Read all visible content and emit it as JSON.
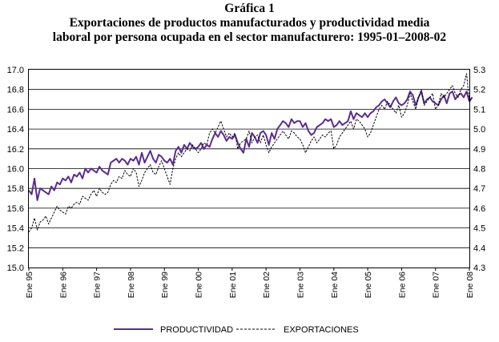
{
  "chart_data": {
    "type": "line",
    "figure_label": "Gráfica 1",
    "title_line1": "Exportaciones de productos manufacturados y productividad media",
    "title_line2": "laboral por persona ocupada en el sector manufacturero: 1995-01–2008-02",
    "left_axis": {
      "ylim": [
        15.0,
        17.0
      ],
      "ticks": [
        "15.0",
        "15.2",
        "15.4",
        "15.6",
        "15.8",
        "16.0",
        "16.2",
        "16.4",
        "16.6",
        "16.8",
        "17.0"
      ]
    },
    "right_axis": {
      "ylim": [
        4.3,
        5.3
      ],
      "ticks": [
        "4.3",
        "4.4",
        "4.5",
        "4.6",
        "4.7",
        "4.8",
        "4.9",
        "5.0",
        "5.1",
        "5.2",
        "5.3"
      ]
    },
    "x_ticks": [
      "Ene 95",
      "Ene 96",
      "Ene 97",
      "Ene 98",
      "Ene 99",
      "Ene 00",
      "Ene 01",
      "Ene 02",
      "Ene 03",
      "Ene 04",
      "Ene 05",
      "Ene 06",
      "Ene 07",
      "Ene 08"
    ],
    "grid": "horizontal",
    "legend_position": "bottom",
    "series": [
      {
        "name": "PRODUCTIVIDAD",
        "axis": "left",
        "color": "#5a2d91",
        "style": "solid",
        "year_values": [
          [
            15.78,
            15.74,
            15.9,
            15.68,
            15.8,
            15.78,
            15.76,
            15.74,
            15.82,
            15.78,
            15.86,
            15.84
          ],
          [
            15.9,
            15.88,
            15.92,
            15.86,
            15.94,
            15.92,
            15.96,
            15.9,
            16.0,
            15.96,
            16.0,
            15.98
          ],
          [
            15.96,
            16.02,
            15.98,
            15.96,
            15.94,
            16.06,
            16.08,
            16.1,
            16.06,
            16.1,
            16.08,
            16.04
          ],
          [
            16.1,
            16.08,
            16.12,
            16.04,
            16.16,
            16.06,
            16.12,
            16.18,
            16.1,
            16.06,
            16.14,
            16.12
          ],
          [
            16.08,
            16.06,
            16.1,
            16.04,
            16.18,
            16.22,
            16.16,
            16.24,
            16.2,
            16.26,
            16.22,
            16.2
          ],
          [
            16.22,
            16.26,
            16.2,
            16.24,
            16.22,
            16.3,
            16.36,
            16.32,
            16.38,
            16.34,
            16.28,
            16.32
          ],
          [
            16.3,
            16.34,
            16.26,
            16.2,
            16.16,
            16.3,
            16.22,
            16.36,
            16.32,
            16.26,
            16.36,
            16.38
          ],
          [
            16.34,
            16.24,
            16.36,
            16.3,
            16.4,
            16.44,
            16.48,
            16.46,
            16.42,
            16.5,
            16.46,
            16.48
          ],
          [
            16.48,
            16.42,
            16.46,
            16.38,
            16.34,
            16.36,
            16.42,
            16.44,
            16.46,
            16.5,
            16.48,
            16.5
          ],
          [
            16.42,
            16.44,
            16.48,
            16.44,
            16.46,
            16.48,
            16.58,
            16.5,
            16.56,
            16.54,
            16.52,
            16.56
          ],
          [
            16.52,
            16.56,
            16.58,
            16.62,
            16.64,
            16.68,
            16.7,
            16.66,
            16.62,
            16.68,
            16.72,
            16.66
          ],
          [
            16.64,
            16.66,
            16.7,
            16.78,
            16.74,
            16.64,
            16.72,
            16.78,
            16.66,
            16.7,
            16.72,
            16.68
          ],
          [
            16.66,
            16.64,
            16.7,
            16.74,
            16.66,
            16.76,
            16.78,
            16.7,
            16.74,
            16.76,
            16.72,
            16.78
          ],
          [
            16.68,
            16.72
          ]
        ]
      },
      {
        "name": "EXPORTACIONES",
        "axis": "right",
        "color": "#000000",
        "style": "dashed",
        "year_values": [
          [
            4.48,
            4.5,
            4.55,
            4.49,
            4.53,
            4.54,
            4.56,
            4.52,
            4.55,
            4.58,
            4.61,
            4.59
          ],
          [
            4.58,
            4.57,
            4.61,
            4.6,
            4.62,
            4.63,
            4.62,
            4.66,
            4.65,
            4.64,
            4.67,
            4.69
          ],
          [
            4.66,
            4.7,
            4.68,
            4.67,
            4.68,
            4.72,
            4.74,
            4.73,
            4.76,
            4.75,
            4.79,
            4.77
          ],
          [
            4.76,
            4.8,
            4.78,
            4.71,
            4.74,
            4.78,
            4.8,
            4.82,
            4.78,
            4.77,
            4.81,
            4.84
          ],
          [
            4.8,
            4.76,
            4.72,
            4.8,
            4.85,
            4.88,
            4.86,
            4.88,
            4.9,
            4.89,
            4.92,
            4.9
          ],
          [
            4.88,
            4.9,
            4.93,
            4.92,
            4.98,
            5.0,
            4.98,
            5.01,
            5.04,
            5.0,
            4.96,
            4.98
          ],
          [
            4.96,
            4.98,
            4.9,
            4.93,
            4.94,
            4.95,
            4.99,
            4.93,
            4.96,
            4.97,
            4.93,
            4.97
          ],
          [
            4.92,
            4.88,
            4.91,
            4.93,
            4.95,
            4.97,
            4.99,
            4.97,
            4.95,
            4.99,
            4.98,
            4.96
          ],
          [
            4.95,
            4.92,
            4.88,
            4.91,
            4.94,
            4.96,
            4.93,
            4.95,
            4.97,
            4.96,
            4.98,
            4.99
          ],
          [
            4.9,
            4.92,
            4.96,
            4.98,
            5.0,
            5.02,
            5.04,
            5.0,
            5.05,
            5.04,
            5.02,
            5.0
          ],
          [
            4.96,
            4.98,
            5.02,
            5.06,
            5.1,
            5.12,
            5.1,
            5.14,
            5.12,
            5.1,
            5.08,
            5.12
          ],
          [
            5.06,
            5.08,
            5.12,
            5.18,
            5.14,
            5.1,
            5.16,
            5.2,
            5.12,
            5.14,
            5.16,
            5.18
          ],
          [
            5.1,
            5.12,
            5.18,
            5.16,
            5.18,
            5.2,
            5.22,
            5.18,
            5.16,
            5.2,
            5.22,
            5.28
          ],
          [
            5.14,
            5.16
          ]
        ]
      }
    ]
  }
}
